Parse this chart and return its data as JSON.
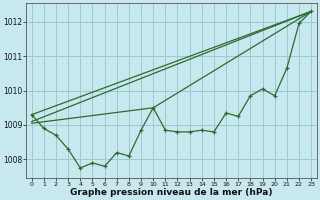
{
  "bg_color": "#c8e8f0",
  "grid_color": "#99cccc",
  "line_color": "#2d6a2d",
  "xlabel": "Graphe pression niveau de la mer (hPa)",
  "ylim": [
    1007.45,
    1012.55
  ],
  "xlim": [
    -0.5,
    23.5
  ],
  "yticks": [
    1008,
    1009,
    1010,
    1011,
    1012
  ],
  "xticks": [
    0,
    1,
    2,
    3,
    4,
    5,
    6,
    7,
    8,
    9,
    10,
    11,
    12,
    13,
    14,
    15,
    16,
    17,
    18,
    19,
    20,
    21,
    22,
    23
  ],
  "line_main": [
    1009.3,
    1008.9,
    1008.7,
    1008.3,
    1007.75,
    1007.9,
    1007.8,
    1008.2,
    1008.1,
    1008.85,
    1009.5,
    1008.85,
    1008.8,
    1008.8,
    1008.85,
    1008.8,
    1009.35,
    1009.25,
    1009.85,
    1010.05,
    1009.85,
    1010.65,
    1011.95,
    1012.3
  ],
  "line_straight1": [
    [
      0,
      1009.3
    ],
    [
      23,
      1012.3
    ]
  ],
  "line_straight2": [
    [
      0,
      1009.1
    ],
    [
      23,
      1012.3
    ]
  ],
  "line_straight3": [
    [
      0,
      1009.05
    ],
    [
      10,
      1009.5
    ],
    [
      23,
      1012.3
    ]
  ]
}
